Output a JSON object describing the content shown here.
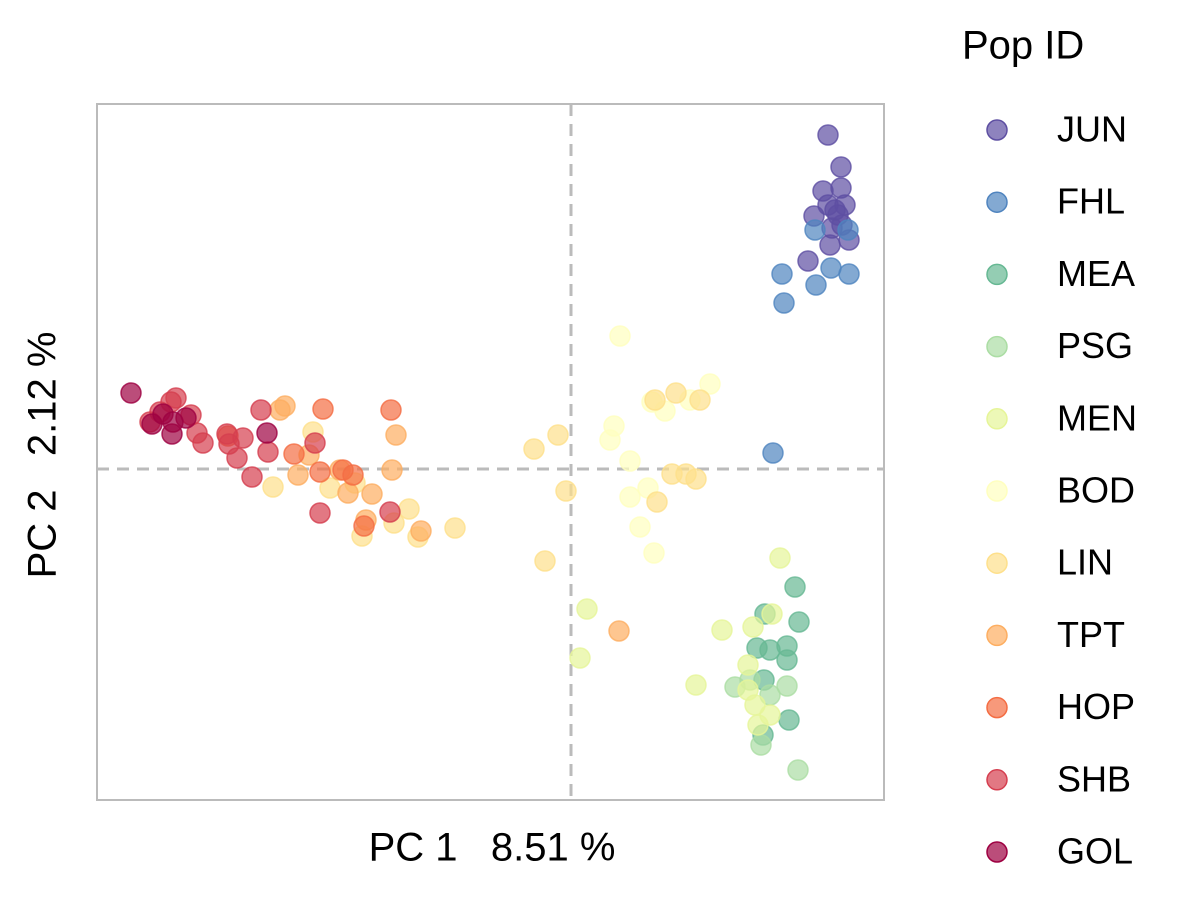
{
  "chart_data": {
    "type": "scatter",
    "xlabel": "PC 1   8.51 %",
    "ylabel": "PC 2   2.12 %",
    "legend_title": "Pop ID",
    "legend": "right",
    "xlim": [
      -4.74,
      3.13
    ],
    "ylim": [
      -3.31,
      3.65
    ],
    "hline": 0,
    "vline": 0,
    "series": [
      {
        "name": "JUN",
        "color": "#5e4fa2",
        "x": [
          2.57,
          2.7,
          2.52,
          2.7,
          2.43,
          2.57,
          2.74,
          2.67,
          2.61,
          2.78,
          2.59,
          2.37,
          2.71,
          2.64
        ],
        "values": [
          3.34,
          3.02,
          2.78,
          2.81,
          2.53,
          2.64,
          2.64,
          2.54,
          2.41,
          2.29,
          2.24,
          2.08,
          2.44,
          2.59
        ]
      },
      {
        "name": "FHL",
        "color": "#4f84bf",
        "x": [
          2.11,
          2.6,
          2.78,
          2.45,
          2.13,
          2.02,
          2.44,
          2.77
        ],
        "values": [
          1.95,
          2.01,
          1.95,
          1.84,
          1.66,
          0.16,
          2.39,
          2.39
        ]
      },
      {
        "name": "MEA",
        "color": "#66b893",
        "x": [
          2.24,
          1.94,
          2.28,
          2.16,
          1.99,
          1.86,
          2.16,
          1.93,
          2.18,
          1.92
        ],
        "values": [
          -1.18,
          -1.45,
          -1.53,
          -1.77,
          -1.81,
          -1.79,
          -1.91,
          -2.11,
          -2.51,
          -2.66
        ]
      },
      {
        "name": "PSG",
        "color": "#abdda4",
        "x": [
          2.27,
          1.9,
          1.64,
          2.16,
          1.99,
          1.79
        ],
        "values": [
          -3.01,
          -2.76,
          -2.18,
          -2.17,
          -2.26,
          -2.11
        ]
      },
      {
        "name": "MEN",
        "color": "#e6f598",
        "x": [
          2.09,
          0.16,
          0.09,
          1.51,
          1.82,
          2.01,
          1.25,
          1.77,
          1.84,
          1.99,
          1.87,
          1.77
        ],
        "values": [
          -0.89,
          -1.4,
          -1.89,
          -1.61,
          -1.58,
          -1.45,
          -2.16,
          -1.96,
          -2.36,
          -2.46,
          -2.56,
          -2.21
        ]
      },
      {
        "name": "BOD",
        "color": "#ffffbf",
        "x": [
          0.49,
          0.43,
          0.59,
          0.39,
          0.77,
          0.59,
          0.69,
          0.83,
          0.94,
          1.19,
          1.39,
          0.81
        ],
        "values": [
          1.33,
          0.43,
          0.08,
          0.29,
          -0.19,
          -0.28,
          -0.58,
          -0.84,
          0.58,
          0.69,
          0.85,
          0.67
        ]
      },
      {
        "name": "LIN",
        "color": "#fee08b",
        "x": [
          -0.37,
          -0.13,
          -0.05,
          -0.26,
          -1.16,
          -1.53,
          -1.62,
          -1.77,
          -2.09,
          1.01,
          1.25,
          1.15,
          0.84,
          1.05,
          0.86,
          1.29,
          -2.41,
          -2.16,
          -2.58,
          -2.98
        ],
        "values": [
          0.2,
          0.34,
          -0.22,
          -0.92,
          -0.59,
          -0.68,
          -0.4,
          -0.54,
          -0.67,
          -0.05,
          -0.1,
          -0.05,
          0.69,
          0.76,
          -0.33,
          0.69,
          -0.19,
          -0.14,
          0.37,
          -0.18
        ]
      },
      {
        "name": "TPT",
        "color": "#fdae61",
        "x": [
          0.48,
          -1.75,
          -1.79,
          -1.99,
          -2.23,
          -2.73,
          -2.86,
          -2.91,
          -1.5,
          -2.05,
          -2.62,
          -2.31
        ],
        "values": [
          -1.62,
          0.34,
          -0.01,
          -0.25,
          -0.24,
          -0.06,
          0.63,
          0.59,
          -0.62,
          -0.51,
          0.14,
          -0.01
        ]
      },
      {
        "name": "HOP",
        "color": "#f46d43",
        "x": [
          -2.48,
          -1.8,
          -2.51,
          -2.28,
          -2.77,
          -2.07,
          -3.43,
          -2.18
        ],
        "values": [
          0.6,
          0.59,
          -0.03,
          -0.01,
          0.15,
          -0.57,
          0.33,
          -0.06
        ]
      },
      {
        "name": "SHB",
        "color": "#d53e4f",
        "x": [
          -3.95,
          -4.0,
          -3.8,
          -3.74,
          -3.68,
          -3.44,
          -3.28,
          -3.34,
          -3.1,
          -3.03,
          -3.19,
          -2.56,
          -2.51,
          -1.81,
          -3.42,
          -4.11,
          -4.21
        ],
        "values": [
          0.71,
          0.67,
          0.54,
          0.36,
          0.26,
          0.35,
          0.31,
          0.11,
          0.59,
          0.17,
          -0.08,
          0.26,
          -0.44,
          -0.43,
          0.25,
          0.57,
          0.47
        ]
      },
      {
        "name": "GOL",
        "color": "#9e0142",
        "x": [
          -4.4,
          -4.19,
          -3.99,
          -4.08,
          -3.85,
          -3.04,
          -3.98
        ],
        "values": [
          0.76,
          0.45,
          0.35,
          0.55,
          0.51,
          0.36,
          0.47
        ]
      }
    ]
  }
}
